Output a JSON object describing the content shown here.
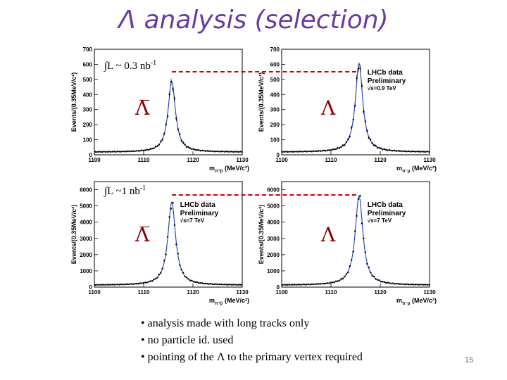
{
  "title": "Λ analysis (selection)",
  "luminosity": {
    "top": {
      "prefix": "∫L ~ 0.3 nb",
      "exp": "-1"
    },
    "bottom": {
      "prefix": "∫L ~1 nb",
      "exp": "-1"
    }
  },
  "bullets": [
    "analysis made with long tracks only",
    "no particle id. used",
    "pointing of the Λ to the primary vertex required"
  ],
  "page_number": "15",
  "colors": {
    "title": "#6a3aa0",
    "fit": "#1f3fb5",
    "particle_label": "#8b0000",
    "dashed_line": "#d00000"
  },
  "chart_data": [
    {
      "type": "scatter",
      "particle": "Λ̅",
      "xlabel": "m",
      "xlabel_sub": "π⁺p̅",
      "xlabel_unit": " (MeV/c²)",
      "ylabel": "Events/(0.35MeV/c²)",
      "xlim": [
        1100,
        1130
      ],
      "ylim": [
        0,
        700
      ],
      "xticks": [
        "1100",
        "1110",
        "1120",
        "1130"
      ],
      "yticks": [
        "0",
        "100",
        "200",
        "300",
        "400",
        "500",
        "600",
        "700"
      ],
      "legend": {
        "line1": "",
        "line2": "",
        "line3": ""
      },
      "peak": {
        "mean": 1115.7,
        "height": 470,
        "width": 0.9,
        "background": 18
      }
    },
    {
      "type": "scatter",
      "particle": "Λ",
      "xlabel": "m",
      "xlabel_sub": "π⁻p",
      "xlabel_unit": " (MeV/c²)",
      "ylabel": "Events/(0.35MeV/c²)",
      "xlim": [
        1100,
        1130
      ],
      "ylim": [
        0,
        700
      ],
      "xticks": [
        "1100",
        "1110",
        "1120",
        "1130"
      ],
      "yticks": [
        "0",
        "100",
        "200",
        "300",
        "400",
        "500",
        "600",
        "700"
      ],
      "legend": {
        "line1": "LHCb data",
        "line2": "Preliminary",
        "line3": "√s=0.9 TeV"
      },
      "peak": {
        "mean": 1115.7,
        "height": 590,
        "width": 0.9,
        "background": 18
      }
    },
    {
      "type": "scatter",
      "particle": "Λ̅",
      "xlabel": "m",
      "xlabel_sub": "π⁺p̅",
      "xlabel_unit": " (MeV/c²)",
      "ylabel": "Events/(0.35MeV/c²)",
      "xlim": [
        1100,
        1130
      ],
      "ylim": [
        0,
        6500
      ],
      "xticks": [
        "1100",
        "1110",
        "1120",
        "1130"
      ],
      "yticks": [
        "0",
        "1000",
        "2000",
        "3000",
        "4000",
        "5000",
        "6000"
      ],
      "legend": {
        "line1": "LHCb data",
        "line2": "Preliminary",
        "line3": "√s=7 TeV"
      },
      "peak": {
        "mean": 1115.7,
        "height": 5100,
        "width": 0.95,
        "background": 120
      }
    },
    {
      "type": "scatter",
      "particle": "Λ",
      "xlabel": "m",
      "xlabel_sub": "π⁻p",
      "xlabel_unit": " (MeV/c²)",
      "ylabel": "Events/(0.35MeV/c²)",
      "xlim": [
        1100,
        1130
      ],
      "ylim": [
        0,
        6500
      ],
      "xticks": [
        "1100",
        "1110",
        "1120",
        "1130"
      ],
      "yticks": [
        "0",
        "1000",
        "2000",
        "3000",
        "4000",
        "5000",
        "6000"
      ],
      "legend": {
        "line1": "LHCb data",
        "line2": "Preliminary",
        "line3": "√s=7 TeV"
      },
      "peak": {
        "mean": 1115.7,
        "height": 5500,
        "width": 0.95,
        "background": 120
      }
    }
  ]
}
